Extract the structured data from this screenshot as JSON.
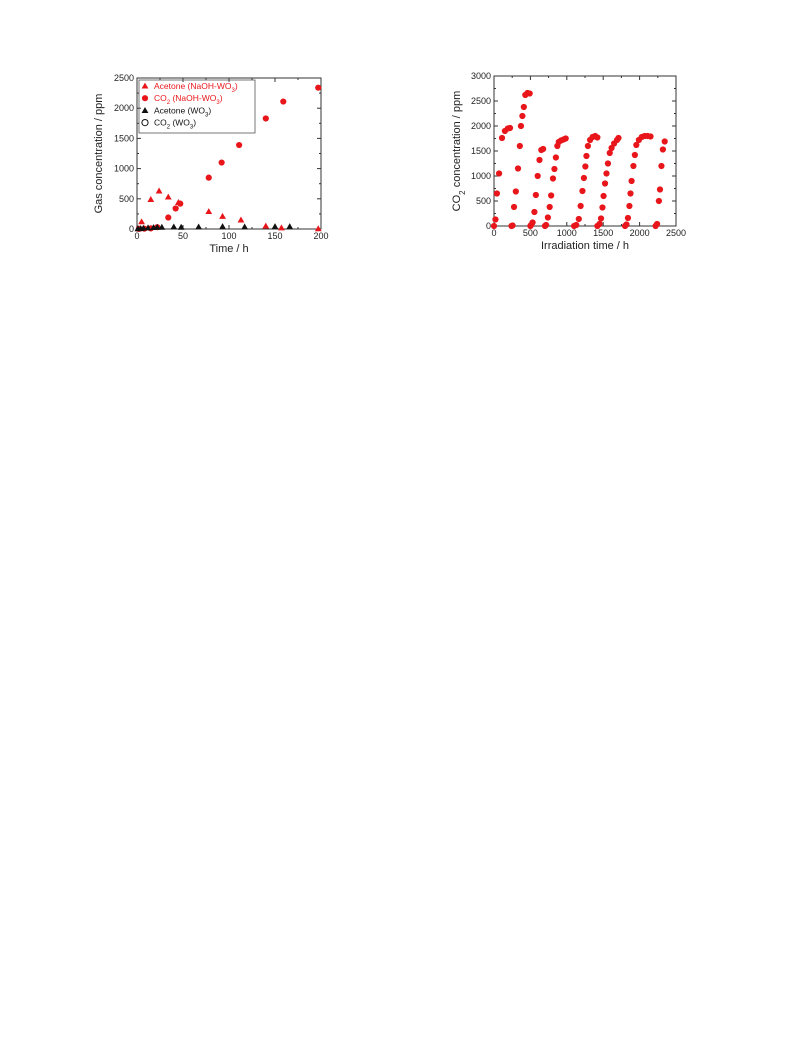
{
  "chart_data": [
    {
      "type": "scatter",
      "xlabel": "Time / h",
      "ylabel": "Gas concentration / ppm",
      "xlim": [
        0,
        200
      ],
      "ylim": [
        0,
        2500
      ],
      "xticks": [
        0,
        50,
        100,
        150,
        200
      ],
      "yticks": [
        0,
        500,
        1000,
        1500,
        2000,
        2500
      ],
      "legend_position": "top-left",
      "series": [
        {
          "name": "Acetone (NaOH-WO3)",
          "legend_label": {
            "main": "Acetone (NaOH-WO",
            "sub": "3",
            "tail": ")"
          },
          "marker": "triangle-filled",
          "color": "#e8161b",
          "points": [
            [
              2,
              5
            ],
            [
              5,
              120
            ],
            [
              15,
              490
            ],
            [
              24,
              630
            ],
            [
              34,
              530
            ],
            [
              45,
              440
            ],
            [
              78,
              290
            ],
            [
              93,
              210
            ],
            [
              113,
              150
            ],
            [
              140,
              50
            ],
            [
              157,
              20
            ],
            [
              197,
              5
            ]
          ]
        },
        {
          "name": "CO2 (NaOH-WO3)",
          "legend_label": {
            "main": "CO",
            "sub": "2",
            "tail": " (NaOH-WO3)",
            "tail_main": " (NaOH-WO",
            "tail_sub": "3",
            "tail_end": ")"
          },
          "marker": "circle-filled",
          "color": "#e8161b",
          "points": [
            [
              2,
              2
            ],
            [
              8,
              5
            ],
            [
              15,
              10
            ],
            [
              22,
              30
            ],
            [
              34,
              190
            ],
            [
              42,
              340
            ],
            [
              47,
              420
            ],
            [
              78,
              850
            ],
            [
              92,
              1100
            ],
            [
              111,
              1390
            ],
            [
              140,
              1830
            ],
            [
              159,
              2110
            ],
            [
              197,
              2340
            ]
          ]
        },
        {
          "name": "Acetone (WO3)",
          "legend_label": {
            "main": "Acetone (WO",
            "sub": "3",
            "tail": ")"
          },
          "marker": "triangle-filled",
          "color": "#111111",
          "points": [
            [
              1,
              5
            ],
            [
              4,
              10
            ],
            [
              7,
              15
            ],
            [
              12,
              20
            ],
            [
              18,
              25
            ],
            [
              22,
              30
            ],
            [
              27,
              30
            ],
            [
              40,
              35
            ],
            [
              48,
              30
            ],
            [
              67,
              35
            ],
            [
              93,
              40
            ],
            [
              117,
              35
            ],
            [
              150,
              40
            ],
            [
              166,
              40
            ]
          ]
        },
        {
          "name": "CO2 (WO3)",
          "legend_label": {
            "main": "CO",
            "sub": "2",
            "tail_main": " (WO",
            "tail_sub": "3",
            "tail_end": ")"
          },
          "marker": "circle-open",
          "color": "#111111",
          "points": []
        }
      ]
    },
    {
      "type": "scatter",
      "xlabel": "Irradiation time / h",
      "ylabel_main": "CO",
      "ylabel_sub": "2",
      "ylabel_tail": " concentration / ppm",
      "xlim": [
        0,
        2500
      ],
      "ylim": [
        0,
        3000
      ],
      "xticks": [
        0,
        500,
        1000,
        1500,
        2000,
        2500
      ],
      "yticks": [
        0,
        500,
        1000,
        1500,
        2000,
        2500,
        3000
      ],
      "series": [
        {
          "marker": "circle-filled",
          "color": "#e8161b",
          "points": [
            [
              0,
              0
            ],
            [
              20,
              130
            ],
            [
              40,
              650
            ],
            [
              70,
              1050
            ],
            [
              110,
              1760
            ],
            [
              150,
              1900
            ],
            [
              190,
              1950
            ],
            [
              220,
              1960
            ],
            [
              240,
              0
            ],
            [
              255,
              10
            ],
            [
              275,
              380
            ],
            [
              300,
              690
            ],
            [
              330,
              1150
            ],
            [
              355,
              1600
            ],
            [
              370,
              2000
            ],
            [
              390,
              2200
            ],
            [
              410,
              2380
            ],
            [
              430,
              2620
            ],
            [
              460,
              2660
            ],
            [
              490,
              2650
            ],
            [
              500,
              0
            ],
            [
              510,
              20
            ],
            [
              530,
              70
            ],
            [
              555,
              280
            ],
            [
              575,
              620
            ],
            [
              600,
              1000
            ],
            [
              625,
              1320
            ],
            [
              650,
              1520
            ],
            [
              675,
              1540
            ],
            [
              700,
              0
            ],
            [
              715,
              20
            ],
            [
              740,
              170
            ],
            [
              765,
              380
            ],
            [
              785,
              610
            ],
            [
              810,
              950
            ],
            [
              830,
              1140
            ],
            [
              850,
              1370
            ],
            [
              870,
              1600
            ],
            [
              890,
              1680
            ],
            [
              920,
              1710
            ],
            [
              955,
              1730
            ],
            [
              985,
              1750
            ],
            [
              1100,
              0
            ],
            [
              1130,
              20
            ],
            [
              1165,
              140
            ],
            [
              1190,
              400
            ],
            [
              1215,
              700
            ],
            [
              1235,
              960
            ],
            [
              1255,
              1190
            ],
            [
              1270,
              1400
            ],
            [
              1290,
              1600
            ],
            [
              1320,
              1720
            ],
            [
              1355,
              1780
            ],
            [
              1390,
              1800
            ],
            [
              1420,
              1770
            ],
            [
              1420,
              0
            ],
            [
              1450,
              40
            ],
            [
              1470,
              150
            ],
            [
              1490,
              370
            ],
            [
              1505,
              600
            ],
            [
              1525,
              850
            ],
            [
              1545,
              1050
            ],
            [
              1565,
              1250
            ],
            [
              1590,
              1460
            ],
            [
              1615,
              1560
            ],
            [
              1650,
              1650
            ],
            [
              1690,
              1720
            ],
            [
              1710,
              1760
            ],
            [
              1800,
              0
            ],
            [
              1820,
              30
            ],
            [
              1840,
              160
            ],
            [
              1860,
              400
            ],
            [
              1875,
              650
            ],
            [
              1890,
              900
            ],
            [
              1915,
              1200
            ],
            [
              1935,
              1420
            ],
            [
              1955,
              1620
            ],
            [
              1990,
              1720
            ],
            [
              2030,
              1780
            ],
            [
              2070,
              1800
            ],
            [
              2110,
              1800
            ],
            [
              2150,
              1790
            ],
            [
              2220,
              0
            ],
            [
              2240,
              40
            ],
            [
              2265,
              500
            ],
            [
              2280,
              730
            ],
            [
              2300,
              1200
            ],
            [
              2320,
              1530
            ],
            [
              2345,
              1690
            ]
          ]
        }
      ]
    }
  ]
}
